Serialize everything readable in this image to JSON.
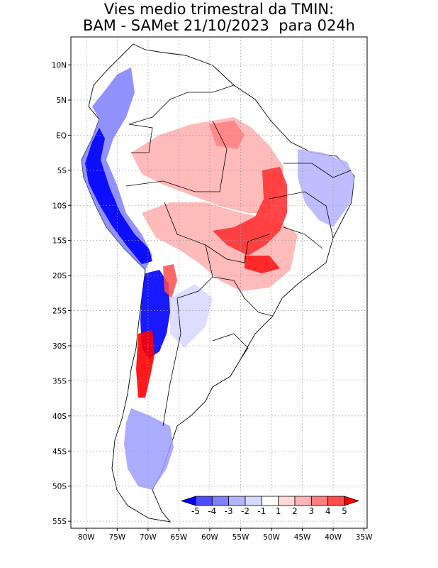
{
  "title": {
    "line1": "Vies medio trimestral da TMIN:",
    "line2": "BAM - SAMet 21/10/2023  para 024h"
  },
  "axes": {
    "lat_ticks": [
      "10N",
      "5N",
      "EQ",
      "5S",
      "10S",
      "15S",
      "20S",
      "25S",
      "30S",
      "35S",
      "40S",
      "45S",
      "50S",
      "55S"
    ],
    "lon_ticks": [
      "80W",
      "75W",
      "70W",
      "65W",
      "60W",
      "55W",
      "50W",
      "45W",
      "40W",
      "35W"
    ],
    "lat_range": [
      14,
      -56
    ],
    "lon_range": [
      -82.5,
      -34.5
    ]
  },
  "colorbar": {
    "labels": [
      "-5",
      "-4",
      "-3",
      "-2",
      "-1",
      "1",
      "2",
      "3",
      "4",
      "5"
    ],
    "colors": [
      "#0000ff",
      "#4d4dff",
      "#7f7fff",
      "#b3b3ff",
      "#d9d9ff",
      "#ffffff",
      "#ffd9d9",
      "#ffb3b3",
      "#ff7f7f",
      "#ff4d4d",
      "#ff0000"
    ]
  },
  "colors": {
    "land": "#ffffff",
    "border": "#000000",
    "grid": "#9a9a9a"
  }
}
